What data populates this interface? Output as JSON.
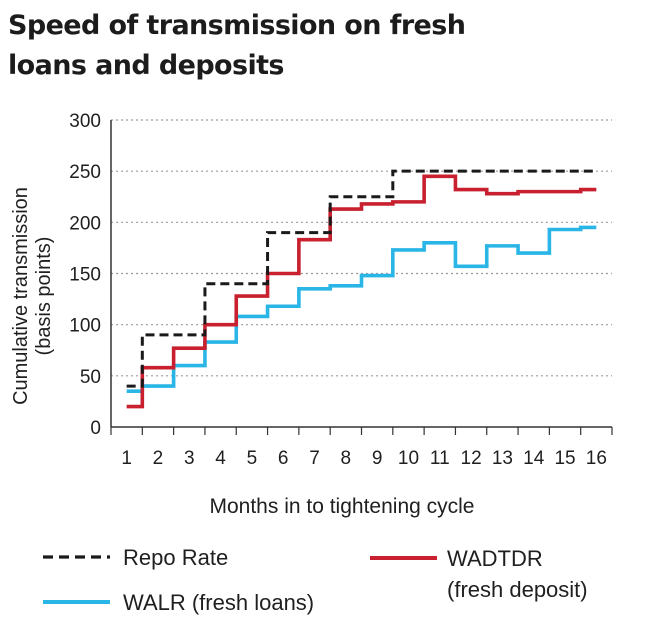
{
  "chart_data": {
    "type": "line",
    "title": "Speed of transmission on fresh loans and deposits",
    "xlabel": "Months in to tightening cycle",
    "ylabel_lines": [
      "Cumulative transmission",
      "(basis points)"
    ],
    "x": [
      1,
      2,
      3,
      4,
      5,
      6,
      7,
      8,
      9,
      10,
      11,
      12,
      13,
      14,
      15,
      16
    ],
    "x_ticks": [
      "1",
      "2",
      "3",
      "4",
      "5",
      "6",
      "7",
      "8",
      "9",
      "10",
      "11",
      "12",
      "13",
      "14",
      "15",
      "16"
    ],
    "y_ticks": [
      "0",
      "50",
      "100",
      "150",
      "200",
      "250",
      "300"
    ],
    "ylim": [
      0,
      300
    ],
    "xlim": [
      0.5,
      16.5
    ],
    "step": true,
    "grid": "horizontal-dotted",
    "series": [
      {
        "name": "Repo Rate",
        "style": "dashed",
        "color": "#1a1a1a",
        "values": [
          40,
          90,
          90,
          140,
          140,
          190,
          190,
          225,
          225,
          250,
          250,
          250,
          250,
          250,
          250,
          250
        ]
      },
      {
        "name": "WALR (fresh loans)",
        "style": "solid",
        "color": "#29b6e6",
        "values": [
          35,
          40,
          60,
          83,
          108,
          118,
          135,
          138,
          148,
          173,
          180,
          157,
          177,
          170,
          193,
          195
        ]
      },
      {
        "name": "WADTDR (fresh deposit)",
        "style": "solid",
        "color": "#c8202f",
        "values": [
          20,
          58,
          77,
          100,
          128,
          150,
          183,
          213,
          218,
          220,
          245,
          232,
          228,
          230,
          230,
          232
        ]
      }
    ],
    "legend": [
      {
        "label_lines": [
          "Repo Rate"
        ],
        "series": "Repo Rate"
      },
      {
        "label_lines": [
          "WALR (fresh loans)"
        ],
        "series": "WALR (fresh loans)"
      },
      {
        "label_lines": [
          "WADTDR",
          "(fresh deposit)"
        ],
        "series": "WADTDR (fresh deposit)"
      }
    ],
    "legend_position": "bottom"
  }
}
